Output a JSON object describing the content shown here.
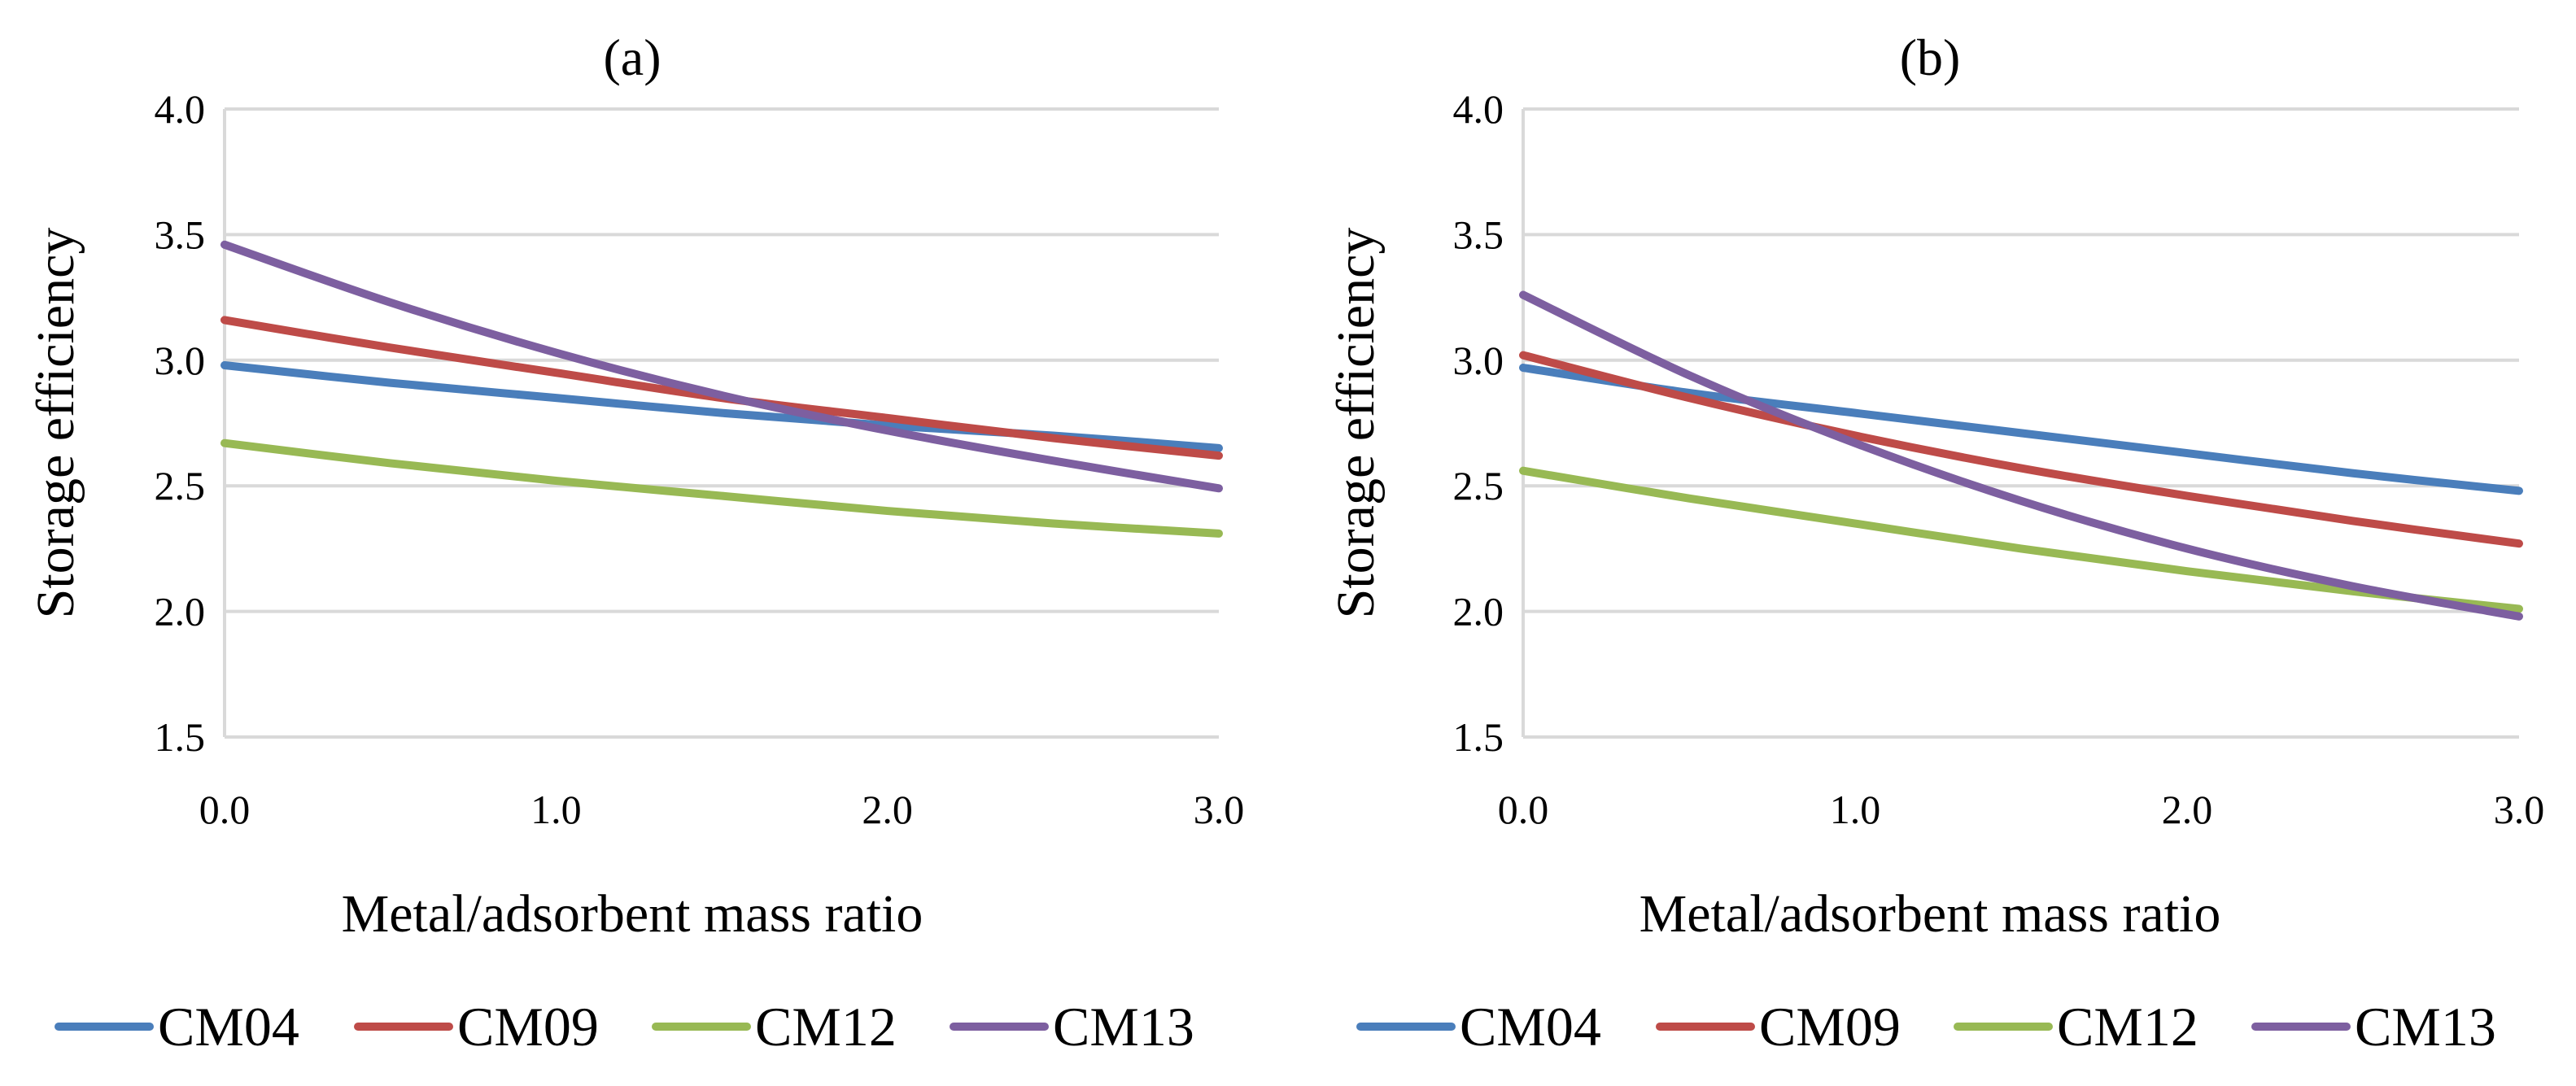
{
  "chart_data": [
    {
      "type": "line",
      "title": "(a)",
      "xlabel": "Metal/adsorbent mass ratio",
      "ylabel": "Storage efficiency",
      "xlim": [
        0,
        3
      ],
      "ylim": [
        1.5,
        4.0
      ],
      "xticks": [
        "0.0",
        "1.0",
        "2.0",
        "3.0"
      ],
      "yticks": [
        "1.5",
        "2.0",
        "2.5",
        "3.0",
        "3.5",
        "4.0"
      ],
      "grid": true,
      "legend": "bottom",
      "x": [
        0,
        0.5,
        1.0,
        1.5,
        2.0,
        2.5,
        3.0
      ],
      "series": [
        {
          "name": "CM04",
          "color": "#4a7ebb",
          "values": [
            2.98,
            2.91,
            2.85,
            2.79,
            2.74,
            2.7,
            2.65
          ]
        },
        {
          "name": "CM09",
          "color": "#be4b48",
          "values": [
            3.16,
            3.05,
            2.95,
            2.85,
            2.77,
            2.69,
            2.62
          ]
        },
        {
          "name": "CM12",
          "color": "#98b954",
          "values": [
            2.67,
            2.59,
            2.52,
            2.46,
            2.4,
            2.35,
            2.31
          ]
        },
        {
          "name": "CM13",
          "color": "#7d5fa0",
          "values": [
            3.46,
            3.23,
            3.03,
            2.86,
            2.72,
            2.6,
            2.49
          ]
        }
      ]
    },
    {
      "type": "line",
      "title": "(b)",
      "xlabel": "Metal/adsorbent mass ratio",
      "ylabel": "Storage efficiency",
      "xlim": [
        0,
        3
      ],
      "ylim": [
        1.5,
        4.0
      ],
      "xticks": [
        "0.0",
        "1.0",
        "2.0",
        "3.0"
      ],
      "yticks": [
        "1.5",
        "2.0",
        "2.5",
        "3.0",
        "3.5",
        "4.0"
      ],
      "grid": true,
      "legend": "bottom",
      "x": [
        0,
        0.5,
        1.0,
        1.5,
        2.0,
        2.5,
        3.0
      ],
      "series": [
        {
          "name": "CM04",
          "color": "#4a7ebb",
          "values": [
            2.97,
            2.87,
            2.79,
            2.71,
            2.63,
            2.55,
            2.48
          ]
        },
        {
          "name": "CM09",
          "color": "#be4b48",
          "values": [
            3.02,
            2.85,
            2.7,
            2.57,
            2.46,
            2.36,
            2.27
          ]
        },
        {
          "name": "CM12",
          "color": "#98b954",
          "values": [
            2.56,
            2.45,
            2.35,
            2.25,
            2.16,
            2.08,
            2.01
          ]
        },
        {
          "name": "CM13",
          "color": "#7d5fa0",
          "values": [
            3.26,
            2.94,
            2.67,
            2.44,
            2.25,
            2.1,
            1.98
          ]
        }
      ]
    }
  ]
}
